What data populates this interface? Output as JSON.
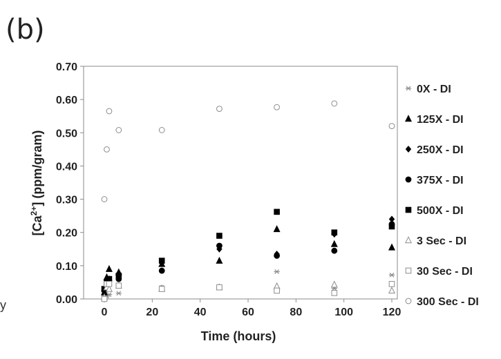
{
  "panel_label": "(b)",
  "stray_mark": "y",
  "chart_data": {
    "type": "scatter",
    "title": "",
    "xlabel": "Time (hours)",
    "ylabel_parts": {
      "pre": "[Ca",
      "sup": "2+",
      "post": "] (ppm/gram)"
    },
    "xlim": [
      0,
      120
    ],
    "ylim": [
      0,
      0.7
    ],
    "xticks": [
      "0",
      "20",
      "40",
      "60",
      "80",
      "100",
      "120"
    ],
    "yticks": [
      "0.00",
      "0.10",
      "0.20",
      "0.30",
      "0.40",
      "0.50",
      "0.60",
      "0.70"
    ],
    "grid": false,
    "legend_position": "right",
    "series": [
      {
        "name": "0X - DI",
        "marker": "asterisk",
        "color": "#8c8c8c",
        "x": [
          0,
          1,
          2,
          6,
          24,
          48,
          72,
          96,
          120
        ],
        "y": [
          0.01,
          0.008,
          0.013,
          0.017,
          0.035,
          0.036,
          0.082,
          0.032,
          0.072
        ]
      },
      {
        "name": "125X - DI",
        "marker": "triangle",
        "color": "#000000",
        "x": [
          0,
          1,
          2,
          6,
          24,
          48,
          72,
          96,
          120
        ],
        "y": [
          0.02,
          0.065,
          0.09,
          0.08,
          0.105,
          0.115,
          0.21,
          0.165,
          0.155
        ]
      },
      {
        "name": "250X - DI",
        "marker": "diamond",
        "color": "#000000",
        "x": [
          0,
          1,
          2,
          6,
          24,
          48,
          72,
          96,
          120
        ],
        "y": [
          0.025,
          0.045,
          0.06,
          0.065,
          0.11,
          0.15,
          0.135,
          0.195,
          0.24
        ]
      },
      {
        "name": "375X - DI",
        "marker": "circle",
        "color": "#000000",
        "x": [
          0,
          1,
          2,
          6,
          24,
          48,
          72,
          96,
          120
        ],
        "y": [
          0.025,
          0.04,
          0.055,
          0.06,
          0.085,
          0.16,
          0.13,
          0.145,
          0.225
        ]
      },
      {
        "name": "500X - DI",
        "marker": "square",
        "color": "#000000",
        "x": [
          0,
          1,
          2,
          6,
          24,
          48,
          72,
          96,
          120
        ],
        "y": [
          0.03,
          0.05,
          0.06,
          0.07,
          0.115,
          0.19,
          0.262,
          0.2,
          0.218
        ]
      },
      {
        "name": "3 Sec - DI",
        "marker": "triangle-open",
        "color": "#8c8c8c",
        "x": [
          0,
          1,
          2,
          6,
          24,
          48,
          72,
          96,
          120
        ],
        "y": [
          0.005,
          0.035,
          0.03,
          0.04,
          0.032,
          0.035,
          0.038,
          0.043,
          0.025
        ]
      },
      {
        "name": "30 Sec - DI",
        "marker": "square-open",
        "color": "#8c8c8c",
        "x": [
          0,
          1,
          2,
          6,
          24,
          48,
          72,
          96,
          120
        ],
        "y": [
          0.0,
          0.045,
          0.045,
          0.04,
          0.03,
          0.035,
          0.025,
          0.018,
          0.045
        ]
      },
      {
        "name": "300 Sec - DI",
        "marker": "circle-open",
        "color": "#8c8c8c",
        "x": [
          0,
          1,
          2,
          6,
          24,
          48,
          72,
          96,
          120
        ],
        "y": [
          0.3,
          0.45,
          0.565,
          0.508,
          0.508,
          0.572,
          0.577,
          0.588,
          0.52
        ]
      }
    ]
  }
}
